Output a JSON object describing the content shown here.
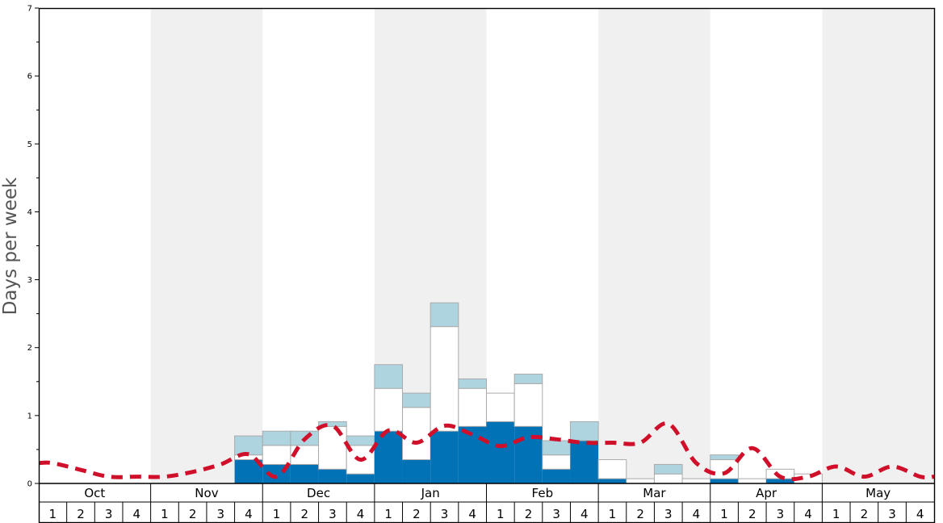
{
  "chart_data": {
    "type": "bar",
    "ylabel": "Days per week",
    "ylim": [
      0,
      7
    ],
    "yticks": [
      "0",
      "1",
      "2",
      "3",
      "4",
      "5",
      "6",
      "7"
    ],
    "months": [
      "Oct",
      "Nov",
      "Dec",
      "Jan",
      "Feb",
      "Mar",
      "Apr",
      "May"
    ],
    "week_labels": [
      "1",
      "2",
      "3",
      "4"
    ],
    "grid": false,
    "colors": {
      "dark": "#0072b5",
      "white": "#ffffff",
      "light": "#aed4e0",
      "line": "#d0102a",
      "band": "#f0f0f0"
    },
    "series": [
      {
        "values": [
          0,
          0,
          0,
          0,
          0,
          0,
          0,
          0.35,
          0.28,
          0.28,
          0.21,
          0.14,
          0.77,
          0.35,
          0.77,
          0.84,
          0.91,
          0.84,
          0.21,
          0.63,
          0.07,
          0,
          0,
          0,
          0.07,
          0,
          0.07,
          0,
          0,
          0,
          0,
          0
        ]
      },
      {
        "values": [
          0,
          0,
          0,
          0,
          0,
          0,
          0,
          0.07,
          0.28,
          0.28,
          0.63,
          0.42,
          0.63,
          0.77,
          1.54,
          0.56,
          0.42,
          0.63,
          0.21,
          0,
          0.28,
          0.07,
          0.14,
          0.07,
          0.28,
          0.07,
          0.14,
          0.14,
          0,
          0,
          0,
          0
        ]
      },
      {
        "values": [
          0,
          0,
          0,
          0,
          0,
          0,
          0,
          0.28,
          0.21,
          0.21,
          0.07,
          0.14,
          0.35,
          0.21,
          0.35,
          0.14,
          0,
          0.14,
          0.21,
          0.28,
          0,
          0,
          0.14,
          0,
          0.07,
          0,
          0,
          0,
          0,
          0,
          0,
          0
        ]
      },
      {
        "values": [
          0.3,
          0.2,
          0.1,
          0.1,
          0.1,
          0.17,
          0.28,
          0.43,
          0.1,
          0.65,
          0.85,
          0.35,
          0.78,
          0.6,
          0.85,
          0.72,
          0.55,
          0.68,
          0.65,
          0.6,
          0.6,
          0.6,
          0.88,
          0.3,
          0.15,
          0.52,
          0.1,
          0.1,
          0.25,
          0.1,
          0.25,
          0.1
        ]
      }
    ]
  }
}
